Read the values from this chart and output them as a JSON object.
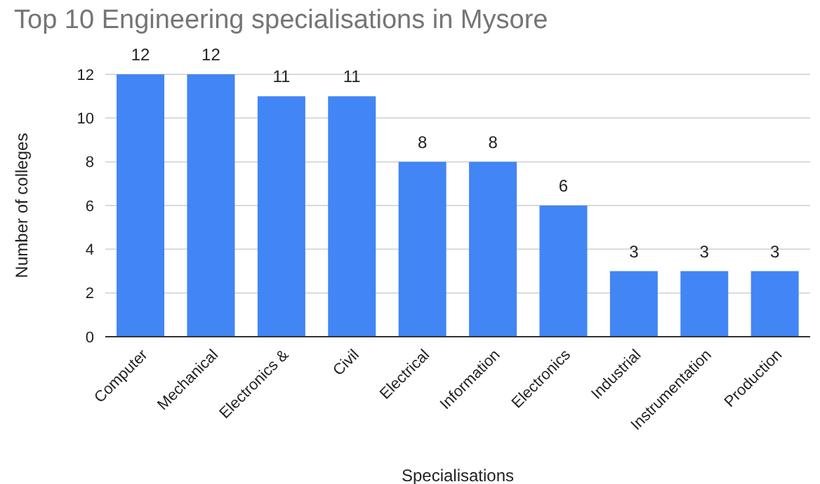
{
  "chart_data": {
    "type": "bar",
    "title": "Top 10 Engineering specialisations in Mysore",
    "xlabel": "Specialisations",
    "ylabel": "Number of colleges",
    "categories": [
      "Computer",
      "Mechanical",
      "Electronics &",
      "Civil",
      "Electrical",
      "Information",
      "Electronics",
      "Industrial",
      "Instrumentation",
      "Production"
    ],
    "values": [
      12,
      12,
      11,
      11,
      8,
      8,
      6,
      3,
      3,
      3
    ],
    "color": "#4285f4",
    "ylim": [
      0,
      12
    ],
    "yticks": [
      0,
      2,
      4,
      6,
      8,
      10,
      12
    ],
    "grid": "y",
    "data_labels": true
  }
}
